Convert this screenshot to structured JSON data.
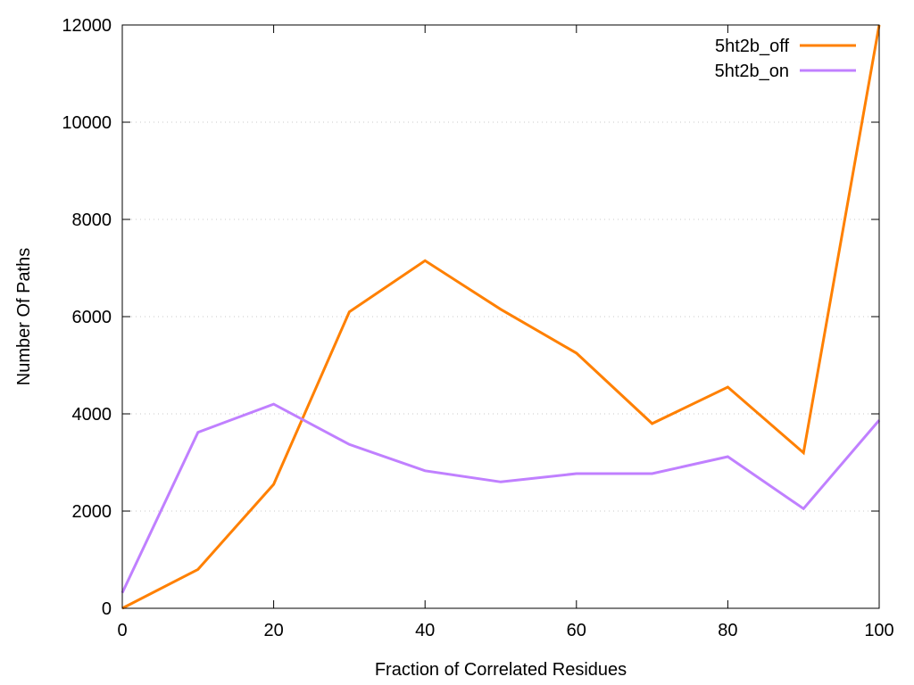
{
  "chart_data": {
    "type": "line",
    "title": "",
    "xlabel": "Fraction of Correlated Residues",
    "ylabel": "Number Of Paths",
    "xlim": [
      0,
      100
    ],
    "ylim": [
      0,
      12000
    ],
    "xticks": [
      "0",
      "20",
      "40",
      "60",
      "80",
      "100"
    ],
    "yticks": [
      "0",
      "2000",
      "4000",
      "6000",
      "8000",
      "10000",
      "12000"
    ],
    "grid": "horizontal dotted",
    "legend_position": "top-right",
    "x": [
      0,
      10,
      20,
      30,
      40,
      50,
      60,
      70,
      80,
      90,
      100
    ],
    "series": [
      {
        "name": "5ht2b_off",
        "color": "#ff8000",
        "values": [
          0,
          800,
          2550,
          6100,
          7150,
          6150,
          5250,
          3800,
          4550,
          3200,
          12000
        ]
      },
      {
        "name": "5ht2b_on",
        "color": "#c080ff",
        "values": [
          320,
          3620,
          4200,
          3370,
          2830,
          2600,
          2770,
          2770,
          3120,
          2050,
          3870
        ]
      }
    ]
  }
}
